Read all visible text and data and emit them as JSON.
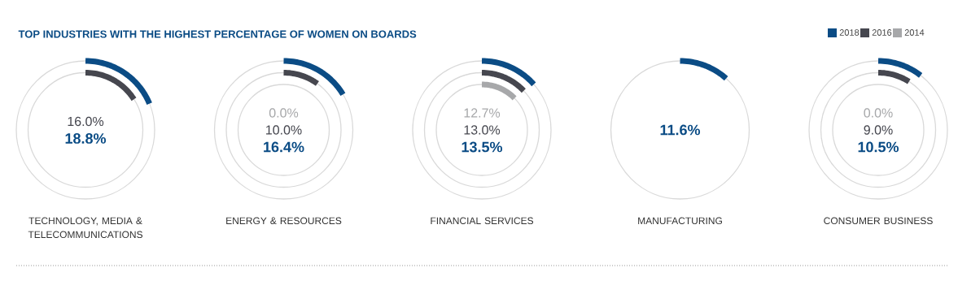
{
  "chart_data": {
    "type": "other",
    "title": "TOP INDUSTRIES WITH THE HIGHEST PERCENTAGE OF WOMEN ON BOARDS",
    "categories": [
      "TECHNOLOGY, MEDIA & TELECOMMUNICATIONS",
      "ENERGY & RESOURCES",
      "FINANCIAL SERVICES",
      "MANUFACTURING",
      "CONSUMER BUSINESS"
    ],
    "series": [
      {
        "name": "2018",
        "color": "#0b4c85",
        "values": [
          18.8,
          16.4,
          13.5,
          11.6,
          10.5
        ],
        "value_labels": [
          "18.8%",
          "16.4%",
          "13.5%",
          "11.6%",
          "10.5%"
        ]
      },
      {
        "name": "2016",
        "color": "#46474f",
        "values": [
          16.0,
          10.0,
          13.0,
          null,
          9.0
        ],
        "value_labels": [
          "16.0%",
          "10.0%",
          "13.0%",
          null,
          "9.0%"
        ]
      },
      {
        "name": "2014",
        "color": "#a7a8aa",
        "values": [
          null,
          0.0,
          12.7,
          null,
          0.0
        ],
        "value_labels": [
          null,
          "0.0%",
          "12.7%",
          null,
          "0.0%"
        ]
      }
    ],
    "legend": "top right"
  }
}
